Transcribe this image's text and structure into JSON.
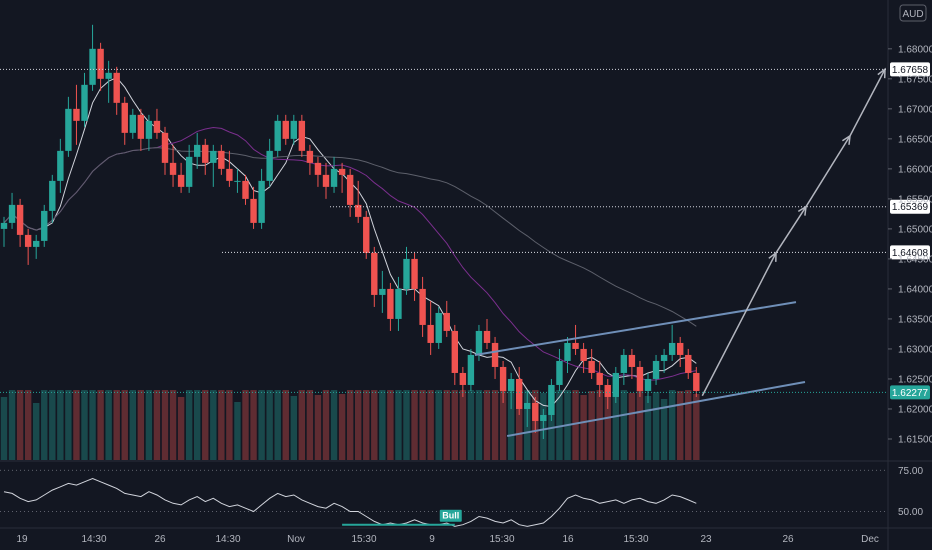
{
  "colors": {
    "background": "#131722",
    "up": "#26a69a",
    "down": "#ef5350",
    "ma_fast": "#d1d4dc",
    "ma_mid": "#7b2f8e",
    "ma_slow": "#5d606b",
    "channel": "#6f8fb8",
    "projection": "#b2b5be",
    "rsi": "#d1d4dc",
    "hline": "#787b86",
    "label_bg": "#ffffff",
    "price_label_bg": "#26a69a"
  },
  "currency_badge": "AUD",
  "chart_data": [
    {
      "type": "candlestick",
      "title": "",
      "ylim": [
        1.6115,
        1.6868
      ],
      "y_ticks": [
        "1.61500",
        "1.62000",
        "1.62500",
        "1.63000",
        "1.63500",
        "1.64000",
        "1.64500",
        "1.65000",
        "1.65500",
        "1.66000",
        "1.66500",
        "1.67000",
        "1.67500",
        "1.68000"
      ],
      "x_tick_labels": [
        "19",
        "14:30",
        "26",
        "14:30",
        "Nov",
        "15:30",
        "9",
        "15:30",
        "16",
        "15:30",
        "23",
        "26",
        "Dec"
      ],
      "horizontal_levels": [
        {
          "value": 1.67658,
          "label": "1.67658"
        },
        {
          "value": 1.65369,
          "label": "1.65369"
        },
        {
          "value": 1.64608,
          "label": "1.64608"
        }
      ],
      "last_price": {
        "value": 1.62277,
        "label": "1.62277"
      },
      "candles": [
        [
          1.65,
          1.652,
          1.647,
          1.651
        ],
        [
          1.651,
          1.656,
          1.65,
          1.654
        ],
        [
          1.654,
          1.655,
          1.647,
          1.649
        ],
        [
          1.649,
          1.65,
          1.644,
          1.647
        ],
        [
          1.647,
          1.649,
          1.645,
          1.648
        ],
        [
          1.648,
          1.654,
          1.647,
          1.653
        ],
        [
          1.653,
          1.659,
          1.651,
          1.658
        ],
        [
          1.658,
          1.665,
          1.656,
          1.663
        ],
        [
          1.663,
          1.672,
          1.662,
          1.67
        ],
        [
          1.67,
          1.674,
          1.664,
          1.668
        ],
        [
          1.668,
          1.676,
          1.667,
          1.674
        ],
        [
          1.674,
          1.684,
          1.673,
          1.68
        ],
        [
          1.68,
          1.681,
          1.673,
          1.675
        ],
        [
          1.675,
          1.678,
          1.671,
          1.676
        ],
        [
          1.676,
          1.677,
          1.669,
          1.671
        ],
        [
          1.671,
          1.672,
          1.664,
          1.666
        ],
        [
          1.666,
          1.67,
          1.665,
          1.669
        ],
        [
          1.669,
          1.67,
          1.663,
          1.665
        ],
        [
          1.665,
          1.669,
          1.663,
          1.668
        ],
        [
          1.668,
          1.67,
          1.665,
          1.666
        ],
        [
          1.666,
          1.667,
          1.659,
          1.661
        ],
        [
          1.661,
          1.664,
          1.657,
          1.659
        ],
        [
          1.659,
          1.661,
          1.656,
          1.657
        ],
        [
          1.657,
          1.664,
          1.656,
          1.662
        ],
        [
          1.662,
          1.666,
          1.66,
          1.664
        ],
        [
          1.664,
          1.665,
          1.659,
          1.661
        ],
        [
          1.661,
          1.664,
          1.657,
          1.663
        ],
        [
          1.663,
          1.664,
          1.659,
          1.66
        ],
        [
          1.66,
          1.663,
          1.657,
          1.658
        ],
        [
          1.658,
          1.66,
          1.656,
          1.658
        ],
        [
          1.658,
          1.659,
          1.654,
          1.655
        ],
        [
          1.655,
          1.657,
          1.65,
          1.651
        ],
        [
          1.651,
          1.66,
          1.65,
          1.658
        ],
        [
          1.658,
          1.665,
          1.657,
          1.663
        ],
        [
          1.663,
          1.669,
          1.662,
          1.668
        ],
        [
          1.668,
          1.669,
          1.664,
          1.665
        ],
        [
          1.665,
          1.669,
          1.664,
          1.668
        ],
        [
          1.668,
          1.669,
          1.662,
          1.663
        ],
        [
          1.663,
          1.664,
          1.659,
          1.661
        ],
        [
          1.661,
          1.662,
          1.657,
          1.659
        ],
        [
          1.659,
          1.661,
          1.655,
          1.657
        ],
        [
          1.657,
          1.662,
          1.656,
          1.66
        ],
        [
          1.66,
          1.661,
          1.656,
          1.659
        ],
        [
          1.659,
          1.66,
          1.652,
          1.654
        ],
        [
          1.654,
          1.658,
          1.651,
          1.652
        ],
        [
          1.652,
          1.653,
          1.645,
          1.646
        ],
        [
          1.646,
          1.647,
          1.637,
          1.639
        ],
        [
          1.639,
          1.643,
          1.636,
          1.64
        ],
        [
          1.64,
          1.641,
          1.633,
          1.635
        ],
        [
          1.635,
          1.642,
          1.633,
          1.64
        ],
        [
          1.64,
          1.647,
          1.639,
          1.645
        ],
        [
          1.645,
          1.646,
          1.638,
          1.64
        ],
        [
          1.64,
          1.642,
          1.632,
          1.634
        ],
        [
          1.634,
          1.638,
          1.629,
          1.631
        ],
        [
          1.631,
          1.637,
          1.63,
          1.636
        ],
        [
          1.636,
          1.638,
          1.632,
          1.633
        ],
        [
          1.633,
          1.634,
          1.624,
          1.626
        ],
        [
          1.626,
          1.627,
          1.622,
          1.624
        ],
        [
          1.624,
          1.63,
          1.623,
          1.629
        ],
        [
          1.629,
          1.634,
          1.628,
          1.633
        ],
        [
          1.633,
          1.635,
          1.63,
          1.631
        ],
        [
          1.631,
          1.632,
          1.625,
          1.627
        ],
        [
          1.627,
          1.628,
          1.621,
          1.623
        ],
        [
          1.623,
          1.626,
          1.62,
          1.625
        ],
        [
          1.625,
          1.627,
          1.619,
          1.62
        ],
        [
          1.62,
          1.623,
          1.617,
          1.621
        ],
        [
          1.621,
          1.622,
          1.616,
          1.618
        ],
        [
          1.618,
          1.62,
          1.615,
          1.619
        ],
        [
          1.619,
          1.625,
          1.618,
          1.624
        ],
        [
          1.624,
          1.63,
          1.623,
          1.628
        ],
        [
          1.628,
          1.632,
          1.626,
          1.631
        ],
        [
          1.631,
          1.634,
          1.629,
          1.63
        ],
        [
          1.63,
          1.631,
          1.626,
          1.628
        ],
        [
          1.628,
          1.63,
          1.625,
          1.626
        ],
        [
          1.626,
          1.628,
          1.622,
          1.624
        ],
        [
          1.624,
          1.625,
          1.62,
          1.622
        ],
        [
          1.622,
          1.627,
          1.621,
          1.626
        ],
        [
          1.626,
          1.63,
          1.624,
          1.629
        ],
        [
          1.629,
          1.63,
          1.625,
          1.627
        ],
        [
          1.627,
          1.628,
          1.622,
          1.623
        ],
        [
          1.623,
          1.626,
          1.621,
          1.625
        ],
        [
          1.625,
          1.629,
          1.624,
          1.628
        ],
        [
          1.628,
          1.63,
          1.626,
          1.629
        ],
        [
          1.629,
          1.634,
          1.628,
          1.631
        ],
        [
          1.631,
          1.632,
          1.627,
          1.629
        ],
        [
          1.629,
          1.63,
          1.625,
          1.626
        ],
        [
          1.626,
          1.627,
          1.622,
          1.623
        ]
      ],
      "channel": {
        "upper": [
          [
            1.629,
            1.6378
          ]
        ],
        "lower": [
          [
            1.6155,
            1.6245
          ]
        ]
      },
      "projection_path": [
        1.6222,
        1.646,
        1.6537,
        1.6655,
        1.6766
      ]
    },
    {
      "type": "line",
      "title": "",
      "ylim": [
        40,
        80
      ],
      "y_ticks": [
        "75.00",
        "50.00"
      ],
      "annotation": "Bull",
      "values": [
        62,
        61,
        58,
        56,
        57,
        60,
        63,
        65,
        67,
        66,
        68,
        70,
        68,
        66,
        64,
        61,
        60,
        59,
        62,
        60,
        57,
        55,
        54,
        57,
        59,
        56,
        58,
        55,
        53,
        54,
        52,
        50,
        54,
        58,
        61,
        59,
        60,
        57,
        55,
        53,
        52,
        55,
        53,
        50,
        50,
        47,
        44,
        42,
        43,
        42,
        43,
        45,
        43,
        42,
        42,
        43,
        41,
        42,
        44,
        47,
        46,
        44,
        43,
        45,
        42,
        41,
        42,
        43,
        47,
        52,
        58,
        60,
        58,
        57,
        55,
        56,
        57,
        55,
        57,
        58,
        56,
        55,
        57,
        60,
        59,
        57,
        55
      ]
    }
  ]
}
